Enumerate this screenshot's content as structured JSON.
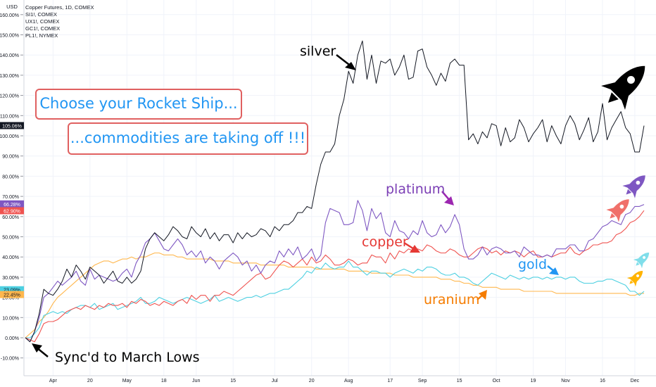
{
  "legend": {
    "title": "Copper Futures, 1D, COMEX",
    "items": [
      "SI1!, COMEX",
      "UX1!, COMEX",
      "GC1!, COMEX",
      "PL1!, NYMEX"
    ]
  },
  "annotations": {
    "callout1": "Choose your Rocket Ship...",
    "callout2": "...commodities are taking off !!!",
    "silver": "silver",
    "platinum": "platinum",
    "copper": "copper",
    "gold": "gold",
    "uranium": "uranium",
    "sync": "Sync'd to March Lows"
  },
  "colors": {
    "silver": "#131722",
    "platinum": "#7e57c2",
    "copper": "#ef5350",
    "gold": "#4dd0e1",
    "uranium": "#ffb74d",
    "grid": "#f0f3fa",
    "axis_text": "#131722",
    "callout_text": "#2196f3",
    "callout_border": "#e06060"
  },
  "chart_data": {
    "type": "line",
    "y_unit": "%",
    "ylim": [
      -15,
      160
    ],
    "y_ticks": [
      "160.00%",
      "150.00%",
      "140.00%",
      "130.00%",
      "120.00%",
      "110.00%",
      "100.00%",
      "90.00%",
      "80.00%",
      "70.00%",
      "60.00%",
      "50.00%",
      "40.00%",
      "30.00%",
      "20.00%",
      "10.00%",
      "0.00%",
      "-10.00%"
    ],
    "x_ticks": [
      "Apr",
      "20",
      "May",
      "18",
      "Jun",
      "15",
      "Jul",
      "20",
      "Aug",
      "17",
      "Sep",
      "15",
      "Oct",
      "19",
      "Nov",
      "16",
      "Dec"
    ],
    "x_tick_index": [
      6,
      14,
      22,
      30,
      37,
      45,
      54,
      62,
      70,
      79,
      86,
      94,
      102,
      110,
      117,
      125,
      132
    ],
    "axis_label": "USD",
    "last_value_badges": [
      {
        "text": "105.06%",
        "series": "silver",
        "value": 105.06
      },
      {
        "text": "66.28%",
        "series": "platinum",
        "value": 66.28
      },
      {
        "text": "62.90%",
        "series": "copper",
        "value": 62.9
      },
      {
        "text": "23.09%",
        "series": "gold",
        "value": 23.09
      },
      {
        "text": "22.45%",
        "series": "uranium",
        "value": 22.45
      }
    ],
    "series": [
      {
        "key": "silver",
        "values": [
          0,
          -2,
          3,
          12,
          24,
          22,
          21,
          24,
          28,
          34,
          30,
          36,
          33,
          29,
          35,
          33,
          31,
          27,
          30,
          33,
          28,
          27,
          30,
          27,
          29,
          33,
          44,
          49,
          52,
          50,
          48,
          51,
          55,
          53,
          50,
          49,
          55,
          52,
          50,
          54,
          49,
          52,
          48,
          51,
          51,
          47,
          52,
          49,
          52,
          50,
          51,
          54,
          53,
          50,
          55,
          53,
          56,
          56,
          58,
          62,
          62,
          65,
          64,
          76,
          86,
          92,
          92,
          96,
          110,
          118,
          132,
          126,
          140,
          147,
          128,
          140,
          126,
          137,
          136,
          138,
          130,
          134,
          140,
          128,
          129,
          142,
          143,
          134,
          130,
          125,
          131,
          127,
          136,
          138,
          135,
          135,
          98,
          101,
          96,
          102,
          99,
          106,
          105,
          95,
          104,
          97,
          99,
          108,
          104,
          97,
          101,
          104,
          108,
          97,
          105,
          100,
          96,
          105,
          110,
          106,
          98,
          103,
          109,
          97,
          102,
          116,
          98,
          104,
          108,
          112,
          104,
          101,
          92,
          92,
          105
        ]
      },
      {
        "key": "platinum",
        "values": [
          0,
          -2,
          3,
          10,
          20,
          22,
          25,
          28,
          26,
          28,
          30,
          33,
          28,
          26,
          34,
          29,
          31,
          30,
          29,
          28,
          29,
          32,
          34,
          30,
          37,
          41,
          47,
          49,
          52,
          48,
          44,
          43,
          46,
          49,
          46,
          41,
          43,
          40,
          43,
          37,
          40,
          38,
          34,
          38,
          40,
          42,
          40,
          36,
          38,
          33,
          36,
          32,
          36,
          38,
          37,
          43,
          40,
          44,
          41,
          45,
          39,
          41,
          44,
          38,
          41,
          57,
          64,
          63,
          62,
          56,
          56,
          57,
          68,
          63,
          53,
          64,
          59,
          62,
          52,
          50,
          58,
          53,
          52,
          49,
          53,
          51,
          58,
          52,
          50,
          51,
          56,
          52,
          55,
          61,
          56,
          44,
          39,
          39,
          41,
          45,
          41,
          44,
          45,
          44,
          42,
          42,
          43,
          40,
          45,
          43,
          41,
          41,
          40,
          41,
          40,
          44,
          44,
          44,
          46,
          46,
          43,
          43,
          48,
          49,
          52,
          55,
          56,
          58,
          57,
          56,
          61,
          62,
          65,
          65,
          66
        ]
      },
      {
        "key": "copper",
        "values": [
          0,
          -1,
          -2,
          2,
          7,
          8,
          8,
          9,
          11,
          13,
          14,
          15,
          14,
          16,
          15,
          14,
          16,
          15,
          17,
          16,
          16,
          17,
          15,
          18,
          17,
          19,
          18,
          16,
          17,
          16,
          18,
          17,
          16,
          18,
          19,
          17,
          21,
          19,
          21,
          21,
          18,
          21,
          21,
          23,
          22,
          21,
          23,
          25,
          27,
          29,
          31,
          32,
          29,
          30,
          33,
          36,
          38,
          37,
          35,
          37,
          39,
          36,
          40,
          37,
          38,
          41,
          39,
          36,
          36,
          37,
          39,
          38,
          36,
          37,
          37,
          41,
          40,
          40,
          37,
          42,
          39,
          43,
          42,
          44,
          43,
          44,
          43,
          46,
          45,
          43,
          42,
          42,
          44,
          43,
          41,
          40,
          40,
          42,
          44,
          45,
          44,
          42,
          43,
          41,
          43,
          42,
          43,
          42,
          40,
          42,
          43,
          40,
          40,
          41,
          40,
          41,
          42,
          42,
          45,
          42,
          41,
          43,
          44,
          46,
          46,
          47,
          47,
          48,
          51,
          52,
          54,
          57,
          58,
          60,
          63
        ]
      },
      {
        "key": "gold",
        "values": [
          0,
          0,
          2,
          5,
          11,
          12,
          13,
          12,
          13,
          12,
          14,
          15,
          16,
          16,
          15,
          17,
          14,
          15,
          16,
          17,
          14,
          15,
          16,
          17,
          18,
          20,
          17,
          17,
          18,
          20,
          19,
          18,
          17,
          18,
          19,
          20,
          19,
          18,
          17,
          18,
          19,
          21,
          18,
          19,
          20,
          19,
          18,
          19,
          20,
          20,
          21,
          20,
          21,
          22,
          22,
          23,
          24,
          24,
          26,
          28,
          30,
          33,
          32,
          35,
          34,
          37,
          35,
          34,
          35,
          35,
          38,
          35,
          35,
          33,
          31,
          33,
          33,
          32,
          32,
          30,
          32,
          33,
          34,
          33,
          32,
          34,
          33,
          35,
          35,
          34,
          32,
          31,
          31,
          32,
          30,
          30,
          29,
          27,
          26,
          28,
          30,
          32,
          31,
          30,
          29,
          31,
          30,
          29,
          30,
          29,
          30,
          30,
          29,
          30,
          29,
          30,
          30,
          29,
          30,
          30,
          28,
          27,
          27,
          27,
          28,
          28,
          29,
          29,
          28,
          27,
          26,
          23,
          23,
          21,
          23
        ]
      },
      {
        "key": "uranium",
        "values": [
          0,
          2,
          4,
          8,
          10,
          13,
          17,
          20,
          22,
          24,
          26,
          28,
          30,
          32,
          34,
          36,
          37,
          38,
          38,
          37,
          38,
          39,
          39,
          40,
          39,
          40,
          40,
          41,
          42,
          42,
          41,
          41,
          41,
          40,
          40,
          39,
          39,
          39,
          39,
          39,
          39,
          38,
          38,
          38,
          38,
          37,
          37,
          37,
          37,
          37,
          37,
          36,
          36,
          36,
          36,
          36,
          36,
          35,
          35,
          35,
          35,
          35,
          35,
          34,
          34,
          34,
          34,
          34,
          34,
          34,
          33,
          33,
          33,
          33,
          33,
          32,
          32,
          32,
          32,
          32,
          31,
          31,
          31,
          31,
          30,
          30,
          30,
          30,
          30,
          30,
          29,
          29,
          29,
          28,
          28,
          27,
          27,
          26,
          26,
          25,
          25,
          25,
          25,
          24,
          24,
          24,
          24,
          24,
          23,
          23,
          23,
          23,
          23,
          23,
          23,
          22,
          22,
          22,
          22,
          22,
          22,
          22,
          22,
          22,
          22,
          22,
          22,
          22,
          22,
          22,
          22,
          21,
          21,
          22,
          22
        ]
      }
    ]
  }
}
